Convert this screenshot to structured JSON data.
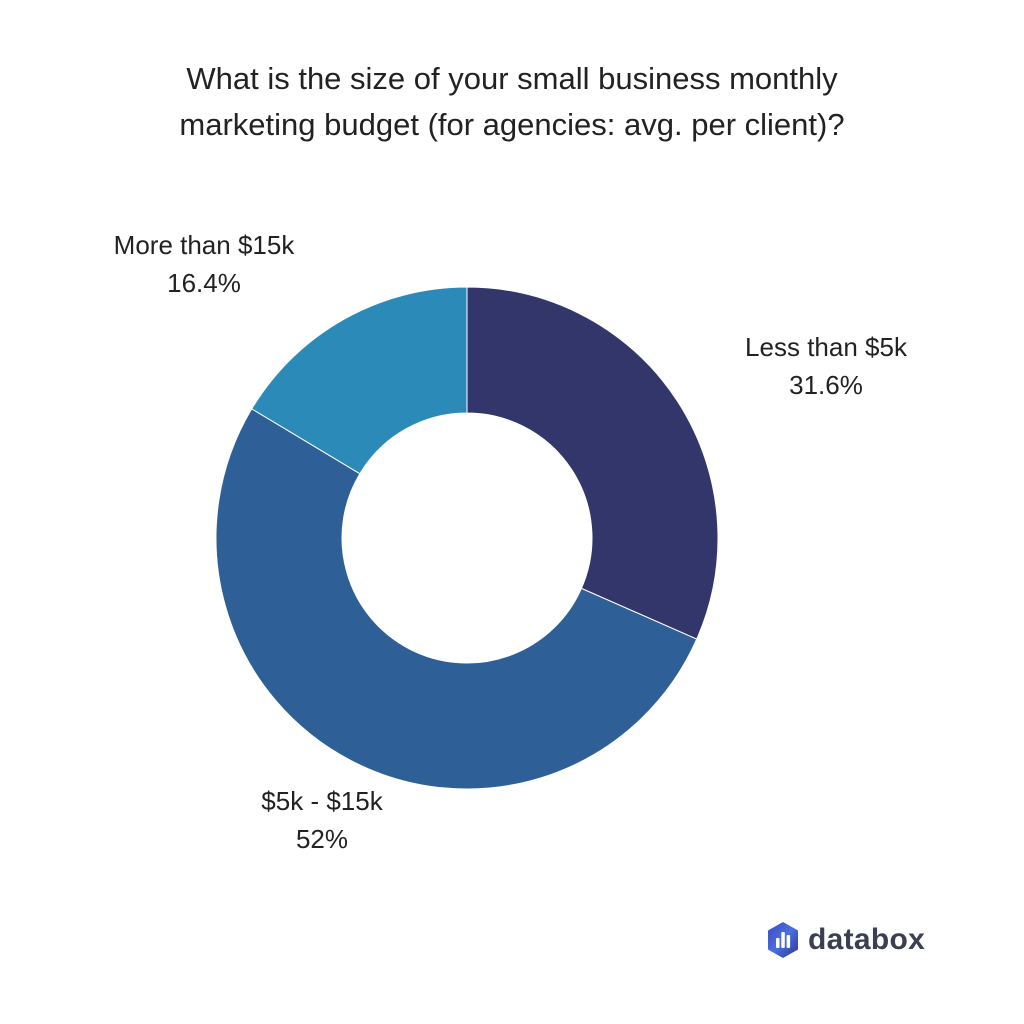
{
  "chart_data": {
    "type": "pie",
    "subtype": "donut",
    "title_lines": [
      "What is the size of your small business monthly",
      "marketing budget (for agencies: avg. per client)?"
    ],
    "slices": [
      {
        "label": "Less than $5k",
        "value": 31.6,
        "value_label": "31.6%",
        "color": "#33366b"
      },
      {
        "label": "$5k - $15k",
        "value": 52,
        "value_label": "52%",
        "color": "#2f5f97"
      },
      {
        "label": "More than $15k",
        "value": 16.4,
        "value_label": "16.4%",
        "color": "#2c8ab9"
      }
    ]
  },
  "brand": {
    "name": "databox",
    "colors": [
      "#3a4bbf",
      "#4a6fe0",
      "#2b3690"
    ]
  }
}
